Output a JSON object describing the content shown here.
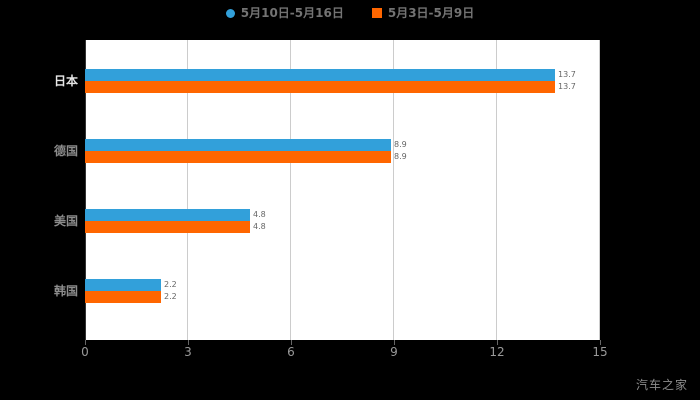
{
  "legend": {
    "items": [
      {
        "label": "5月10日-5月16日",
        "color": "#32a0da",
        "shape": "circle"
      },
      {
        "label": "5月3日-5月9日",
        "color": "#ff6600",
        "shape": "square"
      }
    ]
  },
  "chart_data": {
    "type": "bar",
    "orientation": "horizontal",
    "title": "",
    "categories": [
      "日本",
      "德国",
      "美国",
      "韩国"
    ],
    "category_label_colors": [
      "#e6e6e6",
      "#8c8c8c",
      "#8c8c8c",
      "#8c8c8c"
    ],
    "series": [
      {
        "name": "5月10日-5月16日",
        "color": "#32a0da",
        "values": [
          13.7,
          8.9,
          4.8,
          2.2
        ]
      },
      {
        "name": "5月3日-5月9日",
        "color": "#ff6600",
        "values": [
          13.7,
          8.9,
          4.8,
          2.2
        ]
      }
    ],
    "xlim": [
      0,
      15
    ],
    "x_ticks": [
      "0",
      "3",
      "6",
      "9",
      "12",
      "15"
    ],
    "grid": true,
    "legend_position": "top",
    "plot_background": "#ffffff",
    "page_background": "#000000"
  },
  "watermark": "汽车之家"
}
